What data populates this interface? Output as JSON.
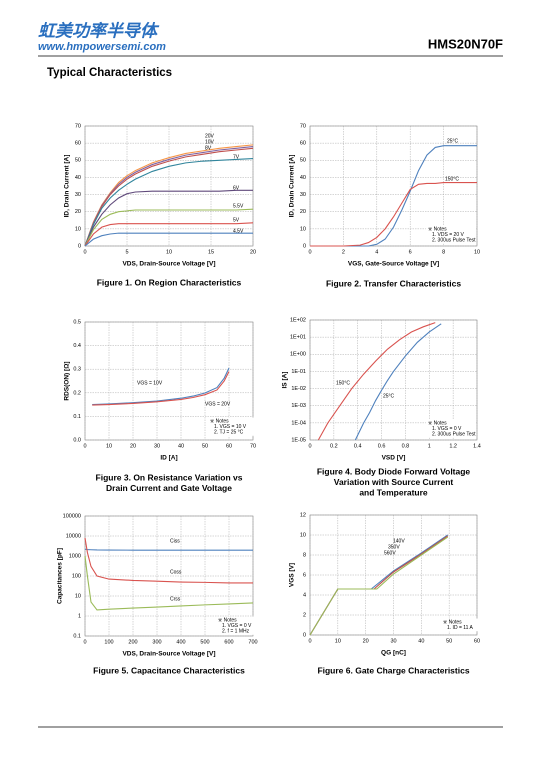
{
  "header": {
    "logo": "虹美功率半导体",
    "website": "www.hmpowersemi.com",
    "part_number": "HMS20N70F"
  },
  "section_title": "Typical Characteristics",
  "chart_data": [
    {
      "type": "line",
      "title": [
        "Figure 1. On Region Characteristics"
      ],
      "xlabel": "VDS, Drain-Source Voltage  [V]",
      "ylabel": "ID, Drain Current  [A]",
      "x": [
        0,
        1,
        2,
        3,
        4,
        5,
        6,
        8,
        10,
        12,
        14,
        16,
        18,
        20
      ],
      "xlim": [
        0,
        20
      ],
      "xticks": [
        0,
        5,
        10,
        15,
        20
      ],
      "ylim": [
        0,
        70
      ],
      "yticks": [
        0,
        10,
        20,
        30,
        40,
        50,
        60,
        70
      ],
      "grid": true,
      "series": [
        {
          "name": "20V",
          "color": "#f79646",
          "values": [
            0,
            14,
            24,
            31,
            37,
            41,
            44,
            48.5,
            51.5,
            54,
            55.5,
            57,
            58,
            59
          ]
        },
        {
          "name": "10V",
          "color": "#8064a2",
          "values": [
            0,
            13.5,
            23.5,
            30.5,
            36,
            40,
            43,
            47.5,
            50.5,
            53,
            54.5,
            56,
            57,
            58
          ]
        },
        {
          "name": "8V",
          "color": "#c0504d",
          "values": [
            0,
            13,
            23,
            30,
            35,
            39,
            42,
            46.5,
            49.5,
            52,
            53.5,
            55,
            56,
            57
          ]
        },
        {
          "name": "7V",
          "color": "#31859c",
          "values": [
            0,
            12.5,
            22,
            28,
            32.5,
            36,
            39,
            43.5,
            46.5,
            48.5,
            49.5,
            50,
            50.5,
            51
          ]
        },
        {
          "name": "6V",
          "color": "#604a7b",
          "values": [
            0,
            11,
            18.5,
            24,
            28,
            30.5,
            31.5,
            32,
            32,
            32,
            32,
            32,
            32.5,
            32.5
          ]
        },
        {
          "name": "5.5V",
          "color": "#9bbb59",
          "values": [
            0,
            9.5,
            15.5,
            18.5,
            20,
            20.5,
            21,
            21,
            21,
            21,
            21,
            21,
            21,
            21.5
          ]
        },
        {
          "name": "5V",
          "color": "#d9534f",
          "values": [
            0,
            7,
            11,
            12.5,
            13,
            13,
            13,
            13,
            13,
            13,
            13,
            13,
            13,
            13.5
          ]
        },
        {
          "name": "4.5V",
          "color": "#4f81bd",
          "values": [
            0,
            4,
            6,
            7,
            7.5,
            7.5,
            7.5,
            7.5,
            7.5,
            7.5,
            7.5,
            7.5,
            7.5,
            7.5
          ]
        }
      ]
    },
    {
      "type": "line",
      "title": [
        "Figure 2. Transfer Characteristics"
      ],
      "xlabel": "VGS, Gate-Source Voltage [V]",
      "ylabel": "ID, Drain Current [A]",
      "x": [
        0,
        2,
        3,
        3.5,
        4,
        4.5,
        5,
        5.5,
        6,
        6.5,
        7,
        7.5,
        8,
        9,
        10
      ],
      "xlim": [
        0,
        10
      ],
      "xticks": [
        0,
        2,
        4,
        6,
        8,
        10
      ],
      "ylim": [
        0,
        70
      ],
      "yticks": [
        0,
        10,
        20,
        30,
        40,
        50,
        60,
        70
      ],
      "grid": true,
      "notes": [
        "※ Notes",
        "1. VDS = 20 V",
        "2. 300us Pulse Test"
      ],
      "series": [
        {
          "name": "25°C",
          "color": "#4f81bd",
          "values": [
            0,
            0,
            0,
            0,
            1,
            4,
            11,
            21,
            32,
            44,
            53,
            57.5,
            58.5,
            58.5,
            58.5
          ]
        },
        {
          "name": "150°C",
          "color": "#d9534f",
          "values": [
            0,
            0,
            0.5,
            2,
            5,
            10,
            17,
            25,
            33,
            36,
            36.5,
            36.5,
            37,
            37,
            37
          ]
        }
      ]
    },
    {
      "type": "line",
      "title": [
        "Figure 3. On Resistance Variation vs",
        "Drain Current and Gate Voltage"
      ],
      "xlabel": "ID [A]",
      "ylabel": "RDS(ON) [Ω]",
      "x": [
        3,
        10,
        20,
        30,
        40,
        45,
        50,
        55,
        58,
        60
      ],
      "xlim": [
        0,
        70
      ],
      "xticks": [
        0,
        10,
        20,
        30,
        40,
        50,
        60,
        70
      ],
      "ylim": [
        0,
        0.5
      ],
      "yticks": [
        {
          "value": 0,
          "label": "0.0"
        },
        0.1,
        0.2,
        0.3,
        0.4,
        0.5
      ],
      "grid": true,
      "notes": [
        "※ Notes",
        "1. VGS = 10 V",
        "2. TJ = 25 °C"
      ],
      "series": [
        {
          "name": "VGS = 10V",
          "color": "#4f81bd",
          "values": [
            0.15,
            0.153,
            0.158,
            0.165,
            0.177,
            0.186,
            0.199,
            0.222,
            0.262,
            0.305
          ]
        },
        {
          "name": "VGS = 20V",
          "color": "#d9534f",
          "values": [
            0.148,
            0.15,
            0.155,
            0.162,
            0.172,
            0.18,
            0.192,
            0.212,
            0.25,
            0.29
          ]
        }
      ]
    },
    {
      "type": "line",
      "title": [
        "Figure 4. Body Diode Forward Voltage",
        "Variation with Source Current",
        "and Temperature"
      ],
      "xlabel": "VSD [V]",
      "ylabel": "IS [A]",
      "xlim": [
        0,
        1.4
      ],
      "xticks": [
        0,
        0.2,
        0.4,
        0.6,
        0.8,
        1,
        1.2,
        1.4
      ],
      "ylim": [
        1e-05,
        100
      ],
      "log_y": true,
      "yticks": [
        {
          "value": 1e-05,
          "label": "1E-05"
        },
        {
          "value": 0.0001,
          "label": "1E-04"
        },
        {
          "value": 0.001,
          "label": "1E-03"
        },
        {
          "value": 0.01,
          "label": "1E-02"
        },
        {
          "value": 0.1,
          "label": "1E-01"
        },
        {
          "value": 1,
          "label": "1E+00"
        },
        {
          "value": 10,
          "label": "1E+01"
        },
        {
          "value": 100,
          "label": "1E+02"
        }
      ],
      "grid": true,
      "notes": [
        "※ Notes",
        "1. VGS = 0 V",
        "2. 300us Pulse Test"
      ],
      "series": [
        {
          "name": "150°C",
          "color": "#d9534f",
          "x": [
            0.07,
            0.15,
            0.25,
            0.35,
            0.45,
            0.55,
            0.65,
            0.75,
            0.85,
            0.95,
            1.05
          ],
          "values": [
            1e-05,
            0.0001,
            0.001,
            0.01,
            0.07,
            0.4,
            2,
            7,
            20,
            40,
            70
          ]
        },
        {
          "name": "25°C",
          "color": "#4f81bd",
          "x": [
            0.38,
            0.45,
            0.5,
            0.55,
            0.6,
            0.65,
            0.7,
            0.8,
            0.9,
            1,
            1.1
          ],
          "values": [
            1e-05,
            0.0001,
            0.0004,
            0.002,
            0.008,
            0.03,
            0.1,
            0.8,
            5,
            20,
            60
          ]
        }
      ]
    },
    {
      "type": "line",
      "title": [
        "Figure 5. Capacitance Characteristics"
      ],
      "xlabel": "VDS, Drain-Source Voltage [V]",
      "ylabel": "Capacitances [pF]",
      "x": [
        0,
        10,
        25,
        50,
        100,
        200,
        300,
        400,
        500,
        600,
        700
      ],
      "xlim": [
        0,
        700
      ],
      "xticks": [
        0,
        100,
        200,
        300,
        400,
        500,
        600,
        700
      ],
      "ylim": [
        0.1,
        100000
      ],
      "log_y": true,
      "yticks": [
        0.1,
        1,
        10,
        100,
        1000,
        10000,
        100000
      ],
      "grid": true,
      "notes": [
        "※ Notes",
        "1. VGS = 0 V",
        "2. f = 1 MHz"
      ],
      "series": [
        {
          "name": "Ciss",
          "color": "#4f81bd",
          "values": [
            2200,
            2100,
            2050,
            2000,
            1980,
            1960,
            1950,
            1950,
            1950,
            1950,
            1950
          ]
        },
        {
          "name": "Coss",
          "color": "#d9534f",
          "values": [
            8000,
            1500,
            300,
            100,
            70,
            60,
            55,
            50,
            48,
            45,
            45
          ]
        },
        {
          "name": "Crss",
          "color": "#9bbb59",
          "values": [
            1000,
            100,
            5,
            2,
            2.2,
            2.5,
            2.8,
            3.2,
            3.6,
            4,
            4.5
          ]
        }
      ]
    },
    {
      "type": "line",
      "title": [
        "Figure 6. Gate Charge Characteristics"
      ],
      "xlabel": "QG [nC]",
      "ylabel": "VGS [V]",
      "xlim": [
        0,
        60
      ],
      "xticks": [
        0,
        10,
        20,
        30,
        40,
        50,
        60
      ],
      "ylim": [
        0,
        12
      ],
      "yticks": [
        0,
        2,
        4,
        6,
        8,
        10,
        12
      ],
      "grid": true,
      "notes": [
        "※ Notes",
        "1. ID = 11 A"
      ],
      "series": [
        {
          "name": "140V",
          "color": "#4f81bd",
          "x": [
            0,
            10,
            22,
            30,
            40,
            49.5
          ],
          "values": [
            0,
            4.6,
            4.6,
            6.4,
            8.2,
            10
          ]
        },
        {
          "name": "350V",
          "color": "#c0504d",
          "x": [
            0,
            10,
            23,
            30,
            40,
            49.5
          ],
          "values": [
            0,
            4.6,
            4.6,
            6.3,
            8.1,
            9.9
          ]
        },
        {
          "name": "560V",
          "color": "#9bbb59",
          "x": [
            0,
            10,
            24,
            30,
            40,
            49.5
          ],
          "values": [
            0,
            4.6,
            4.6,
            6.1,
            8,
            9.8
          ]
        }
      ]
    }
  ]
}
